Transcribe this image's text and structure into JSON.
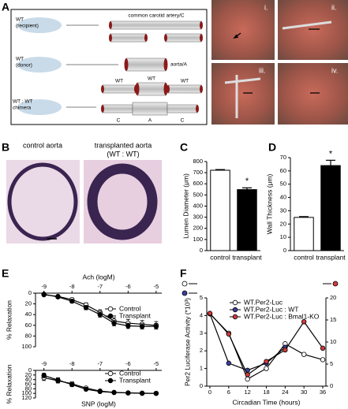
{
  "panel_labels": [
    "A",
    "B",
    "C",
    "D",
    "E",
    "F"
  ],
  "diagram": {
    "recipient": [
      "WT",
      "(recipient)"
    ],
    "artery": "common carotid artery/C",
    "donor": [
      "WT",
      "(donor)"
    ],
    "aorta": "aorta/A",
    "wt_labels": [
      "WT",
      "WT",
      "WT"
    ],
    "chimera": [
      "WT : WT",
      "chimera"
    ],
    "segments": [
      "C",
      "A",
      "C"
    ]
  },
  "photos": [
    "i.",
    "ii.",
    "iii.",
    "iv."
  ],
  "histology": {
    "control": "control aorta",
    "transplanted": [
      "transplanted aorta",
      "(WT : WT)"
    ]
  },
  "chart_data": [
    {
      "type": "bar",
      "ylabel": "Lumen Diameter (μm)",
      "categories": [
        "control",
        "transplant"
      ],
      "values": [
        722,
        548
      ],
      "errors": [
        6,
        16
      ],
      "colors": [
        "#ffffff",
        "#000000"
      ],
      "ylim": [
        0,
        800
      ],
      "yticks": [
        0,
        100,
        200,
        300,
        400,
        500,
        600,
        700,
        800
      ],
      "annotation": "*"
    },
    {
      "type": "bar",
      "ylabel": "Wall Thickness (μm)",
      "categories": [
        "control",
        "transplant"
      ],
      "values": [
        25,
        64
      ],
      "errors": [
        0.6,
        4
      ],
      "colors": [
        "#ffffff",
        "#000000"
      ],
      "ylim": [
        0,
        70
      ],
      "yticks": [
        0,
        10,
        20,
        30,
        40,
        50,
        60,
        70
      ],
      "annotation": "*"
    },
    {
      "type": "line",
      "xlabel": "Ach (logM)",
      "ylabel": "% Relaxation",
      "x": [
        -9,
        -8.5,
        -8,
        -7.5,
        -7,
        -6.5,
        -6,
        -5.5,
        -5
      ],
      "xlim": [
        -9.3,
        -4.8
      ],
      "xticks": [
        -9,
        -8,
        -7,
        -6,
        -5
      ],
      "ylim": [
        0,
        100
      ],
      "yticks": [
        0,
        20,
        40,
        60,
        80,
        100
      ],
      "y_reversed": true,
      "line_color": "#000000",
      "legend": "upper right",
      "series": [
        {
          "name": "Control",
          "color": "#ffffff",
          "values": [
            3,
            6,
            12,
            22,
            36,
            52,
            56,
            58,
            60
          ],
          "errors": [
            1,
            2,
            3,
            4,
            5,
            6,
            7,
            7,
            7
          ]
        },
        {
          "name": "Transplant",
          "color": "#000000",
          "values": [
            2,
            7,
            15,
            27,
            40,
            56,
            61,
            62,
            62
          ],
          "errors": [
            1,
            2,
            3,
            4,
            5,
            5,
            5,
            5,
            5
          ]
        }
      ]
    },
    {
      "type": "line",
      "xlabel": "SNP (logM)",
      "ylabel": "% Relaxation",
      "x": [
        -9,
        -8.5,
        -8,
        -7.5,
        -7,
        -6.5,
        -6,
        -5.5,
        -5
      ],
      "xlim": [
        -9.3,
        -4.8
      ],
      "xticks": [
        -9,
        -8,
        -7,
        -6,
        -5
      ],
      "ylim": [
        0,
        120
      ],
      "yticks": [
        0,
        20,
        40,
        60,
        80,
        100,
        120
      ],
      "y_reversed": true,
      "line_color": "#000000",
      "legend": "upper right",
      "series": [
        {
          "name": "Control",
          "color": "#ffffff",
          "values": [
            32,
            45,
            58,
            77,
            90,
            96,
            98,
            99,
            100
          ],
          "errors": [
            12,
            10,
            8,
            6,
            4,
            3,
            2,
            2,
            2
          ]
        },
        {
          "name": "Transplant",
          "color": "#000000",
          "values": [
            22,
            42,
            62,
            82,
            92,
            96,
            98,
            100,
            100
          ],
          "errors": [
            10,
            10,
            8,
            6,
            4,
            3,
            2,
            2,
            2
          ]
        }
      ]
    },
    {
      "type": "line",
      "xlabel": "Circadian Time (hours)",
      "ylabel": "Per2 Luciferase Activity (*10³)",
      "x": [
        0,
        6,
        12,
        18,
        24,
        30,
        36
      ],
      "xlim": [
        -1,
        37
      ],
      "xticks": [
        0,
        6,
        12,
        18,
        24,
        30,
        36
      ],
      "ylim": [
        0,
        5
      ],
      "yticks": [
        0,
        1,
        2,
        3,
        4,
        5
      ],
      "y2lim": [
        0,
        20
      ],
      "y2ticks": [
        0,
        5,
        10,
        15,
        20
      ],
      "line_color": "#000000",
      "legend": "upper right",
      "series": [
        {
          "name": "WT.Per2-Luc",
          "color": "#ffffff",
          "values": [
            4.1,
            3.0,
            0.4,
            1.0,
            2.4,
            1.8,
            1.5
          ]
        },
        {
          "name": "WT.Per2-Luc : WT",
          "color": "#3a3f9e",
          "values": [
            4.1,
            1.3,
            0.9,
            1.3,
            2.2,
            null,
            null
          ]
        },
        {
          "name": "WT.Per2-Luc : Bmal1-KO",
          "color": "#d23a3a",
          "axis": "y2",
          "values": [
            16.5,
            11.8,
            2.6,
            5.6,
            8.2,
            14.6,
            8.6
          ]
        }
      ]
    }
  ]
}
